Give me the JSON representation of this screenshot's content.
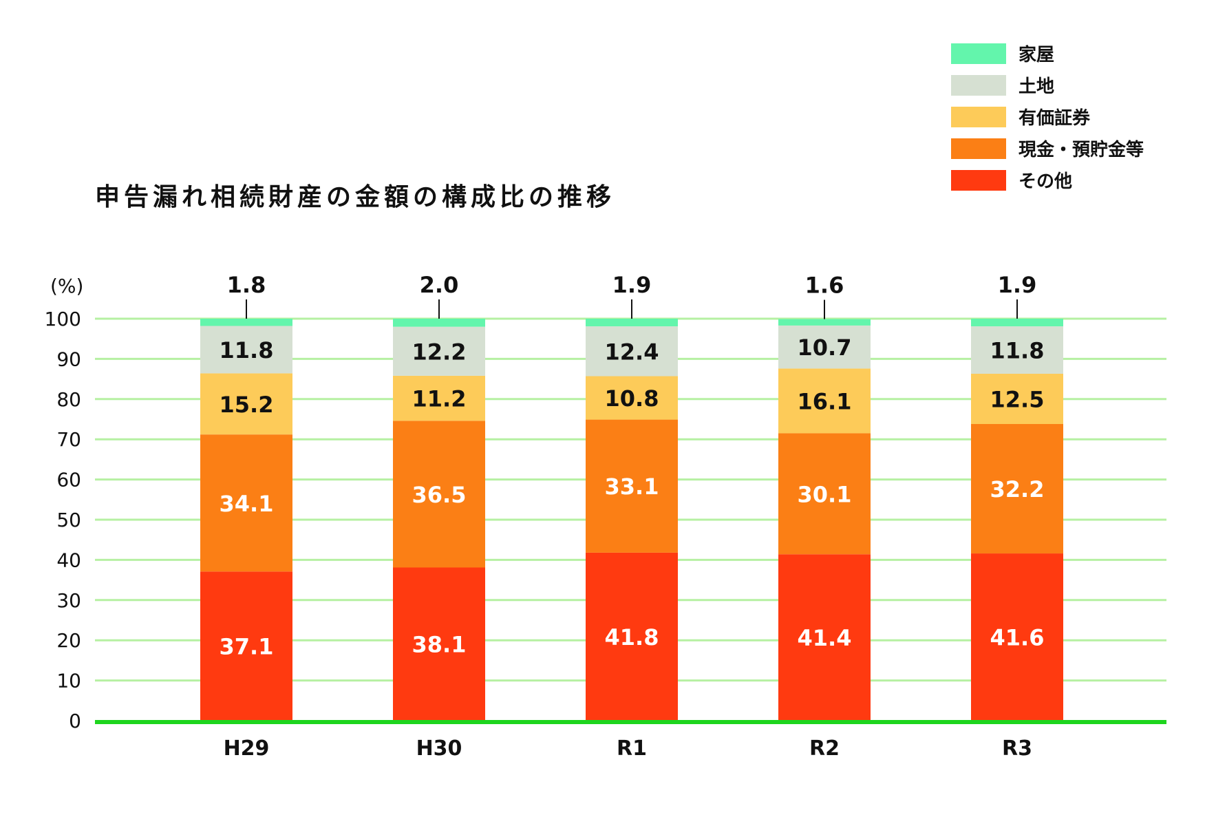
{
  "chart_data": {
    "type": "bar",
    "stacked": true,
    "title": "申告漏れ相続財産の金額の構成比の推移",
    "ylabel": "(%)",
    "ylim": [
      0,
      100
    ],
    "yticks": [
      "0",
      "10",
      "20",
      "30",
      "40",
      "50",
      "60",
      "70",
      "80",
      "90",
      "100"
    ],
    "grid": true,
    "legend_position": "top-right",
    "categories": [
      "H29",
      "H30",
      "R1",
      "R2",
      "R3"
    ],
    "series": [
      {
        "name": "その他",
        "color": "#ff3a10",
        "label_color": "#ffffff",
        "values": [
          37.1,
          38.1,
          41.8,
          41.4,
          41.6
        ],
        "labels": [
          "37.1",
          "38.1",
          "41.8",
          "41.4",
          "41.6"
        ]
      },
      {
        "name": "現金・預貯金等",
        "color": "#fb7f15",
        "label_color": "#ffffff",
        "values": [
          34.1,
          36.5,
          33.1,
          30.1,
          32.2
        ],
        "labels": [
          "34.1",
          "36.5",
          "33.1",
          "30.1",
          "32.2"
        ]
      },
      {
        "name": "有価証券",
        "color": "#fdcb59",
        "label_color": "#111111",
        "values": [
          15.2,
          11.2,
          10.8,
          16.1,
          12.5
        ],
        "labels": [
          "15.2",
          "11.2",
          "10.8",
          "16.1",
          "12.5"
        ]
      },
      {
        "name": "土地",
        "color": "#d6e0d2",
        "label_color": "#111111",
        "values": [
          11.8,
          12.2,
          12.4,
          10.7,
          11.8
        ],
        "labels": [
          "11.8",
          "12.2",
          "12.4",
          "10.7",
          "11.8"
        ]
      },
      {
        "name": "家屋",
        "color": "#63f5ac",
        "label_color": "#111111",
        "values": [
          1.8,
          2.0,
          1.9,
          1.6,
          1.9
        ],
        "labels": [
          "1.8",
          "2.0",
          "1.9",
          "1.6",
          "1.9"
        ]
      }
    ],
    "legend_order": [
      "家屋",
      "土地",
      "有価証券",
      "現金・預貯金等",
      "その他"
    ],
    "colors": {
      "gridline": "#b6f0a2",
      "baseline": "#1ed51e"
    }
  }
}
